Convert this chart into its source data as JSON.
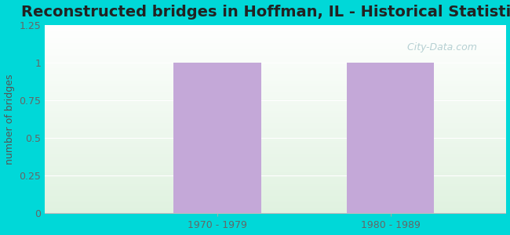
{
  "title": "Reconstructed bridges in Hoffman, IL - Historical Statistics",
  "categories": [
    "1970 - 1979",
    "1980 - 1989"
  ],
  "values": [
    1,
    1
  ],
  "bar_color": "#c4a8d8",
  "ylabel": "number of bridges",
  "ylim": [
    0,
    1.25
  ],
  "yticks": [
    0,
    0.25,
    0.5,
    0.75,
    1,
    1.25
  ],
  "background_outer": "#00d8d8",
  "title_color": "#222222",
  "ylabel_color": "#555555",
  "tick_color": "#666666",
  "watermark": " City-Data.com",
  "title_fontsize": 14,
  "ylabel_fontsize": 9,
  "tick_fontsize": 9
}
